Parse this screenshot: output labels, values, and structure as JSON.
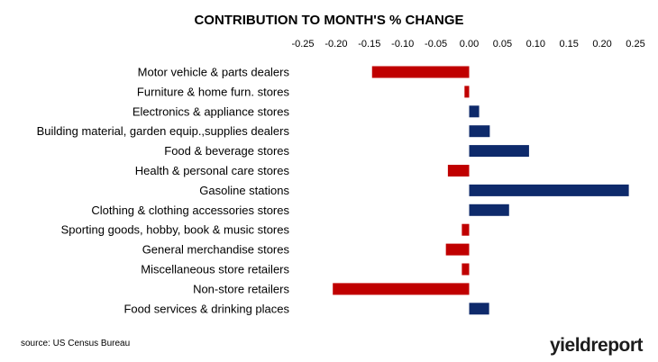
{
  "chart_data": {
    "type": "bar",
    "orientation": "horizontal",
    "title": "CONTRIBUTION TO MONTH'S % CHANGE",
    "xlim": [
      -0.25,
      0.25
    ],
    "x_ticks": [
      "-0.25",
      "-0.20",
      "-0.15",
      "-0.10",
      "-0.05",
      "0.00",
      "0.05",
      "0.10",
      "0.15",
      "0.20",
      "0.25"
    ],
    "x_tick_values": [
      -0.25,
      -0.2,
      -0.15,
      -0.1,
      -0.05,
      0,
      0.05,
      0.1,
      0.15,
      0.2,
      0.25
    ],
    "categories": [
      "Motor vehicle & parts dealers",
      "Furniture & home furn. stores",
      "Electronics & appliance stores",
      "Building material, garden equip.,supplies dealers",
      "Food & beverage stores",
      "Health & personal care stores",
      "Gasoline stations",
      "Clothing & clothing accessories stores",
      "Sporting goods, hobby, book & music stores",
      "General merchandise stores",
      "Miscellaneous store retailers",
      "Non-store retailers",
      "Food services & drinking places"
    ],
    "values": [
      -0.146,
      -0.007,
      0.015,
      0.031,
      0.09,
      -0.032,
      0.24,
      0.06,
      -0.011,
      -0.035,
      -0.011,
      -0.205,
      0.03
    ],
    "colors": {
      "positive": "#0e2a6b",
      "negative": "#c00000"
    },
    "grid": false,
    "legend": "none"
  },
  "source": "source: US Census Bureau",
  "logo": {
    "main": "yieldreport",
    "accent": "."
  }
}
